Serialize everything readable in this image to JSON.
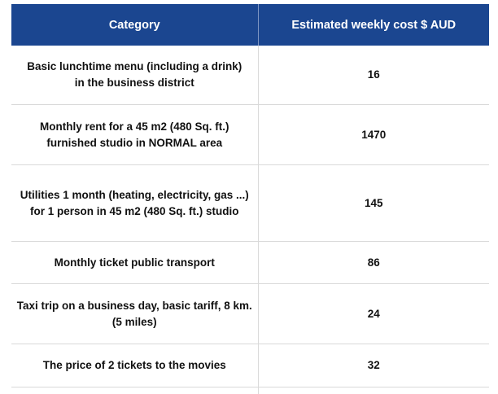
{
  "table": {
    "headers": {
      "category": "Category",
      "cost": "Estimated weekly cost $ AUD"
    },
    "rows": [
      {
        "category": "Basic lunchtime menu (including a drink) in the business district",
        "cost": "16"
      },
      {
        "category": "Monthly rent for a 45 m2 (480 Sq. ft.) furnished studio in NORMAL area",
        "cost": "1470"
      },
      {
        "category": "Utilities 1 month (heating, electricity, gas ...) for 1 person in 45 m2 (480 Sq. ft.) studio",
        "cost": "145"
      },
      {
        "category": "Monthly ticket public transport",
        "cost": "86"
      },
      {
        "category": "Taxi trip on a business day, basic tariff, 8 km. (5 miles)",
        "cost": "24"
      },
      {
        "category": "The price of 2 tickets to the movies",
        "cost": "32"
      }
    ]
  },
  "colors": {
    "header_background": "#1b4690",
    "header_text": "#ffffff",
    "grid_line": "#d9d9d9"
  }
}
